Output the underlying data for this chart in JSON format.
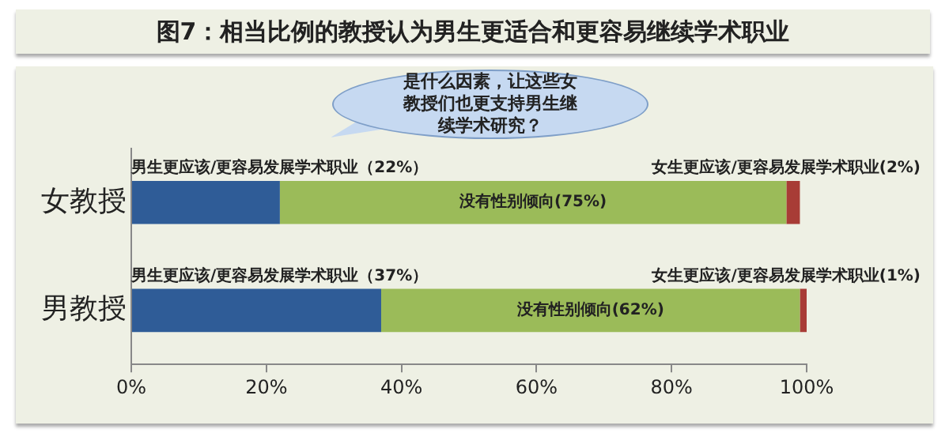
{
  "chart_data": {
    "type": "bar",
    "orientation": "horizontal",
    "stacked": true,
    "title": "图7：相当比例的教授认为男生更适合和更容易继续学术职业",
    "categories": [
      "女教授",
      "男教授"
    ],
    "series": [
      {
        "color": "#2f5c97",
        "values": [
          22,
          37
        ],
        "value_labels": [
          "男生更应该/更容易发展学术职业（22%）",
          "男生更应该/更容易发展学术职业（37%）"
        ]
      },
      {
        "color": "#9bbb59",
        "values": [
          75,
          62
        ],
        "value_labels": [
          "没有性别倾向(75%)",
          "没有性别倾向(62%)"
        ]
      },
      {
        "color": "#a83c36",
        "values": [
          2,
          1
        ],
        "value_labels": [
          "女生更应该/更容易发展学术职业(2%)",
          "女生更应该/更容易发展学术职业(1%)"
        ]
      }
    ],
    "xlim": [
      0,
      100
    ],
    "xticks": [
      {
        "value": 0,
        "label": "0%"
      },
      {
        "value": 20,
        "label": "20%"
      },
      {
        "value": 40,
        "label": "40%"
      },
      {
        "value": 60,
        "label": "60%"
      },
      {
        "value": 80,
        "label": "80%"
      },
      {
        "value": 100,
        "label": "100%"
      }
    ],
    "grid": false,
    "legend": false,
    "annotations": [
      "是什么因素，让这些女教授们也更支持男生继续学术研究？"
    ]
  }
}
